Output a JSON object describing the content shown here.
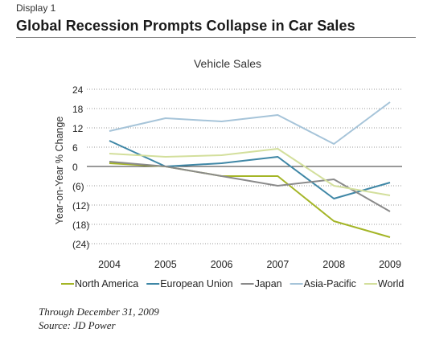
{
  "header": {
    "display_label": "Display 1",
    "title": "Global Recession Prompts Collapse in Car Sales"
  },
  "footnotes": {
    "through": "Through December 31, 2009",
    "source": "Source: JD Power"
  },
  "chart_data": {
    "type": "line",
    "title": "Vehicle Sales",
    "xlabel": "",
    "ylabel": "Year-on-Year % Change",
    "x": [
      "2004",
      "2005",
      "2006",
      "2007",
      "2008",
      "2009"
    ],
    "ylim": [
      -24,
      24
    ],
    "yticks": [
      24,
      18,
      12,
      6,
      0,
      -6,
      -12,
      -18,
      -24
    ],
    "ytick_labels": [
      "24",
      "18",
      "12",
      "6",
      "0",
      "(6)",
      "(12)",
      "(18)",
      "(24)"
    ],
    "grid": "dotted horizontal",
    "legend_position": "bottom",
    "series": [
      {
        "name": "North America",
        "color": "#a4b526",
        "values": [
          1,
          0,
          -3,
          -3,
          -17,
          -22
        ]
      },
      {
        "name": "European Union",
        "color": "#3f87a6",
        "values": [
          8,
          0,
          1,
          3,
          -10,
          -5
        ]
      },
      {
        "name": "Japan",
        "color": "#8a8a8a",
        "values": [
          1.5,
          0,
          -3,
          -6,
          -4,
          -14
        ]
      },
      {
        "name": "Asia-Pacific",
        "color": "#a6c4d9",
        "values": [
          11,
          15,
          14,
          16,
          7,
          20
        ]
      },
      {
        "name": "World",
        "color": "#d3df9c",
        "values": [
          4,
          3,
          3.5,
          5.5,
          -6,
          -9
        ]
      }
    ]
  }
}
